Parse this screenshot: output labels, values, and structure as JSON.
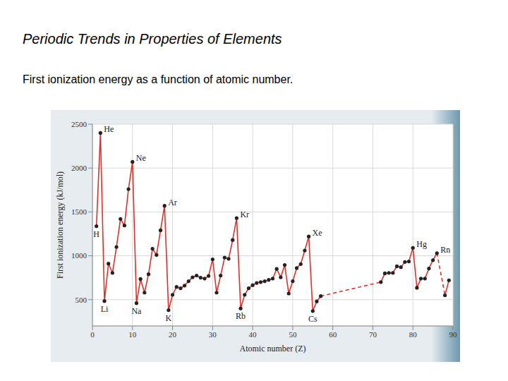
{
  "chart_data": {
    "type": "line",
    "title": "Periodic Trends in Properties of Elements",
    "subtitle": "First ionization energy as a function of atomic number.",
    "xlabel": "Atomic number (Z)",
    "ylabel": "First ionization energy (kJ/mol)",
    "xlim": [
      0,
      90
    ],
    "xticks": [
      0,
      10,
      20,
      30,
      40,
      50,
      60,
      70,
      80,
      90
    ],
    "ylim": [
      200,
      2500
    ],
    "yticks": [
      500,
      1000,
      1500,
      2000,
      2500
    ],
    "grid": true,
    "series": [
      {
        "color": "#e0302a",
        "line_style": "solid",
        "marker": "circle",
        "x": [
          1,
          2,
          3,
          4,
          5,
          6,
          7,
          8,
          9,
          10,
          11,
          12,
          13,
          14,
          15,
          16,
          17,
          18,
          19,
          20,
          21,
          22,
          23,
          24,
          25,
          26,
          27,
          28,
          29,
          30,
          31,
          32,
          33,
          34,
          35,
          36,
          37,
          38,
          39,
          40,
          41,
          42,
          43,
          44,
          45,
          46,
          47,
          48,
          49,
          50,
          51,
          52,
          53,
          54,
          55,
          56,
          57,
          58,
          72,
          73,
          74,
          75,
          76,
          77,
          78,
          79,
          80,
          81,
          82,
          83,
          84,
          85,
          86,
          87,
          88,
          89
        ],
        "values": [
          1337,
          2400,
          484,
          910,
          805,
          1100,
          1420,
          1345,
          1760,
          2070,
          460,
          735,
          580,
          790,
          1080,
          1010,
          1290,
          1570,
          380,
          555,
          645,
          630,
          660,
          710,
          755,
          775,
          750,
          740,
          770,
          960,
          580,
          775,
          980,
          965,
          1180,
          1430,
          400,
          555,
          630,
          665,
          690,
          700,
          710,
          725,
          740,
          850,
          755,
          895,
          570,
          710,
          860,
          905,
          1060,
          1220,
          370,
          480,
          540,
          null,
          700,
          800,
          805,
          805,
          880,
          870,
          930,
          935,
          1090,
          635,
          740,
          740,
          855,
          950,
          1030,
          null,
          550,
          720
        ]
      },
      {
        "color": "#e0302a",
        "line_style": "dashed",
        "marker": "none",
        "x": [
          57,
          72
        ],
        "values": [
          540,
          700
        ]
      },
      {
        "color": "#e0302a",
        "line_style": "dashed",
        "marker": "none",
        "x": [
          86,
          88
        ],
        "values": [
          1030,
          550
        ]
      }
    ],
    "annotations": [
      {
        "x": 1,
        "text": "H"
      },
      {
        "x": 2,
        "text": "He"
      },
      {
        "x": 3,
        "text": "Li"
      },
      {
        "x": 10,
        "text": "Ne"
      },
      {
        "x": 11,
        "text": "Na"
      },
      {
        "x": 18,
        "text": "Ar"
      },
      {
        "x": 19,
        "text": "K"
      },
      {
        "x": 36,
        "text": "Kr"
      },
      {
        "x": 37,
        "text": "Rb"
      },
      {
        "x": 54,
        "text": "Xe"
      },
      {
        "x": 55,
        "text": "Cs"
      },
      {
        "x": 80,
        "text": "Hg"
      },
      {
        "x": 86,
        "text": "Rn"
      }
    ]
  }
}
